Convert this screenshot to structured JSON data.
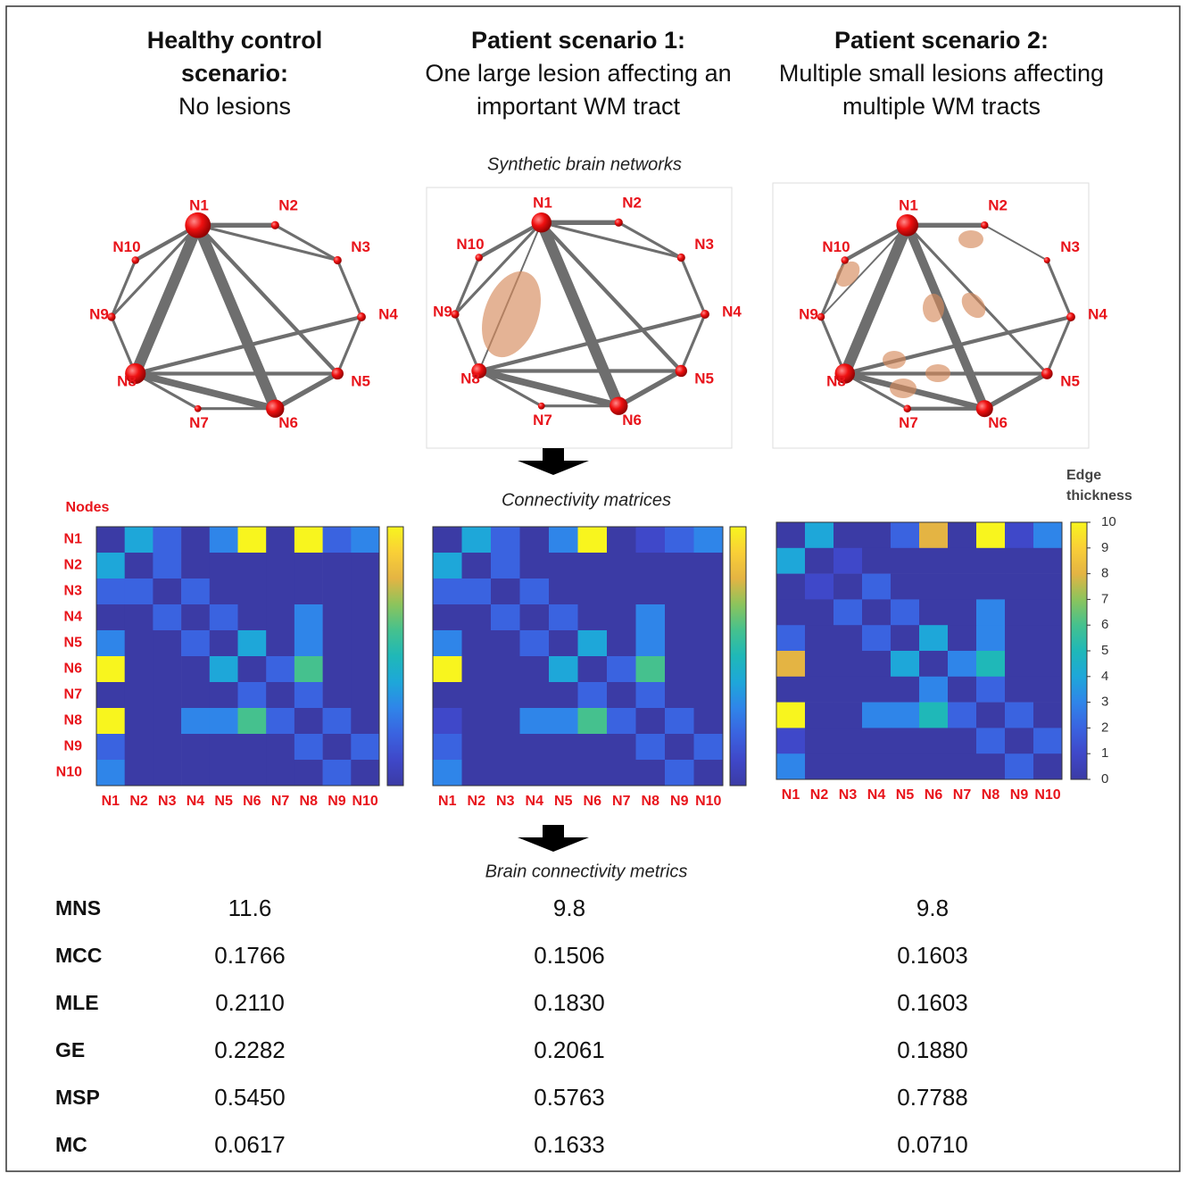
{
  "columns": [
    {
      "title_lines": [
        "Healthy control",
        "scenario:"
      ],
      "subtitle_lines": [
        "No lesions"
      ]
    },
    {
      "title_lines": [
        "Patient scenario 1:"
      ],
      "subtitle_lines": [
        "One large lesion affecting an",
        "important WM tract"
      ]
    },
    {
      "title_lines": [
        "Patient scenario 2:"
      ],
      "subtitle_lines": [
        "Multiple small lesions affecting",
        "multiple WM tracts"
      ]
    }
  ],
  "sections": {
    "networks": "Synthetic brain networks",
    "matrices": "Connectivity matrices",
    "metrics": "Brain connectivity metrics"
  },
  "nodes": [
    "N1",
    "N2",
    "N3",
    "N4",
    "N5",
    "N6",
    "N7",
    "N8",
    "N9",
    "N10"
  ],
  "matrix_axis_label": "Nodes",
  "colorbar": {
    "label_lines": [
      "Edge",
      "thickness"
    ],
    "clim": [
      0,
      10
    ],
    "ticks": [
      0,
      1,
      2,
      3,
      4,
      5,
      6,
      7,
      8,
      9,
      10
    ],
    "colormap": [
      "#3b3ba5",
      "#3f48c9",
      "#3a63e0",
      "#2f85e9",
      "#1ea7d9",
      "#1fb8b8",
      "#45c18e",
      "#8cc45c",
      "#e4b443",
      "#f9cf37",
      "#f8f51e"
    ]
  },
  "matrices": [
    [
      [
        0,
        4,
        2,
        0,
        3,
        10,
        0,
        10,
        2,
        3
      ],
      [
        4,
        0,
        2,
        0,
        0,
        0,
        0,
        0,
        0,
        0
      ],
      [
        2,
        2,
        0,
        2,
        0,
        0,
        0,
        0,
        0,
        0
      ],
      [
        0,
        0,
        2,
        0,
        2,
        0,
        0,
        3,
        0,
        0
      ],
      [
        3,
        0,
        0,
        2,
        0,
        4,
        0,
        3,
        0,
        0
      ],
      [
        10,
        0,
        0,
        0,
        4,
        0,
        2,
        6,
        0,
        0
      ],
      [
        0,
        0,
        0,
        0,
        0,
        2,
        0,
        2,
        0,
        0
      ],
      [
        10,
        0,
        0,
        3,
        3,
        6,
        2,
        0,
        2,
        0
      ],
      [
        2,
        0,
        0,
        0,
        0,
        0,
        0,
        2,
        0,
        2
      ],
      [
        3,
        0,
        0,
        0,
        0,
        0,
        0,
        0,
        2,
        0
      ]
    ],
    [
      [
        0,
        4,
        2,
        0,
        3,
        10,
        0,
        1,
        2,
        3
      ],
      [
        4,
        0,
        2,
        0,
        0,
        0,
        0,
        0,
        0,
        0
      ],
      [
        2,
        2,
        0,
        2,
        0,
        0,
        0,
        0,
        0,
        0
      ],
      [
        0,
        0,
        2,
        0,
        2,
        0,
        0,
        3,
        0,
        0
      ],
      [
        3,
        0,
        0,
        2,
        0,
        4,
        0,
        3,
        0,
        0
      ],
      [
        10,
        0,
        0,
        0,
        4,
        0,
        2,
        6,
        0,
        0
      ],
      [
        0,
        0,
        0,
        0,
        0,
        2,
        0,
        2,
        0,
        0
      ],
      [
        1,
        0,
        0,
        3,
        3,
        6,
        2,
        0,
        2,
        0
      ],
      [
        2,
        0,
        0,
        0,
        0,
        0,
        0,
        2,
        0,
        2
      ],
      [
        3,
        0,
        0,
        0,
        0,
        0,
        0,
        0,
        2,
        0
      ]
    ],
    [
      [
        0,
        4,
        0,
        0,
        2,
        8,
        0,
        10,
        1,
        3
      ],
      [
        4,
        0,
        1,
        0,
        0,
        0,
        0,
        0,
        0,
        0
      ],
      [
        0,
        1,
        0,
        2,
        0,
        0,
        0,
        0,
        0,
        0
      ],
      [
        0,
        0,
        2,
        0,
        2,
        0,
        0,
        3,
        0,
        0
      ],
      [
        2,
        0,
        0,
        2,
        0,
        4,
        0,
        3,
        0,
        0
      ],
      [
        8,
        0,
        0,
        0,
        4,
        0,
        3,
        5,
        0,
        0
      ],
      [
        0,
        0,
        0,
        0,
        0,
        3,
        0,
        2,
        0,
        0
      ],
      [
        10,
        0,
        0,
        3,
        3,
        5,
        2,
        0,
        2,
        0
      ],
      [
        1,
        0,
        0,
        0,
        0,
        0,
        0,
        2,
        0,
        2
      ],
      [
        3,
        0,
        0,
        0,
        0,
        0,
        0,
        0,
        2,
        0
      ]
    ]
  ],
  "metrics": {
    "rows": [
      {
        "name": "MNS",
        "values": [
          "11.6",
          "9.8",
          "9.8"
        ]
      },
      {
        "name": "MCC",
        "values": [
          "0.1766",
          "0.1506",
          "0.1603"
        ]
      },
      {
        "name": "MLE",
        "values": [
          "0.2110",
          "0.1830",
          "0.1603"
        ]
      },
      {
        "name": "GE",
        "values": [
          "0.2282",
          "0.2061",
          "0.1880"
        ]
      },
      {
        "name": "MSP",
        "values": [
          "0.5450",
          "0.5763",
          "0.7788"
        ]
      },
      {
        "name": "MC",
        "values": [
          "0.0617",
          "0.1633",
          "0.0710"
        ]
      }
    ]
  }
}
